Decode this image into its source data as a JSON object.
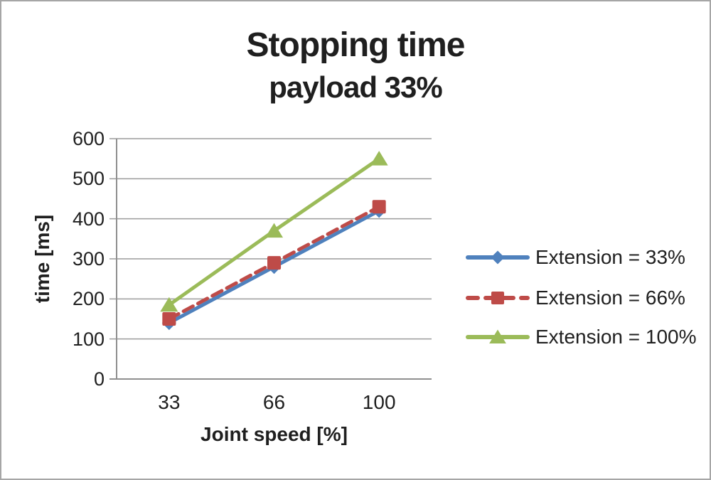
{
  "window": {
    "background": "#ffffff",
    "border_color": "#a6a6a6",
    "text_color": "#1f1f1f"
  },
  "chart_data": {
    "type": "line",
    "title": "Stopping time",
    "subtitle": "payload 33%",
    "xlabel": "Joint speed [%]",
    "ylabel": "time [ms]",
    "categories": [
      "33",
      "66",
      "100"
    ],
    "yticks": [
      0,
      100,
      200,
      300,
      400,
      500,
      600
    ],
    "ylim": [
      0,
      600
    ],
    "grid": "horizontal-major",
    "grid_color": "#9b9b9b",
    "axis_color": "#8f8f8f",
    "legend_position": "right",
    "series": [
      {
        "name": "Extension = 33%",
        "marker": "diamond",
        "line_style": "solid",
        "color": "#4F81BD",
        "values": [
          140,
          280,
          420
        ]
      },
      {
        "name": "Extension = 66%",
        "marker": "square",
        "line_style": "dashed",
        "color": "#BE4B48",
        "values": [
          150,
          290,
          430
        ]
      },
      {
        "name": "Extension = 100%",
        "marker": "triangle",
        "line_style": "solid",
        "color": "#9BBB59",
        "values": [
          185,
          370,
          550
        ]
      }
    ]
  }
}
